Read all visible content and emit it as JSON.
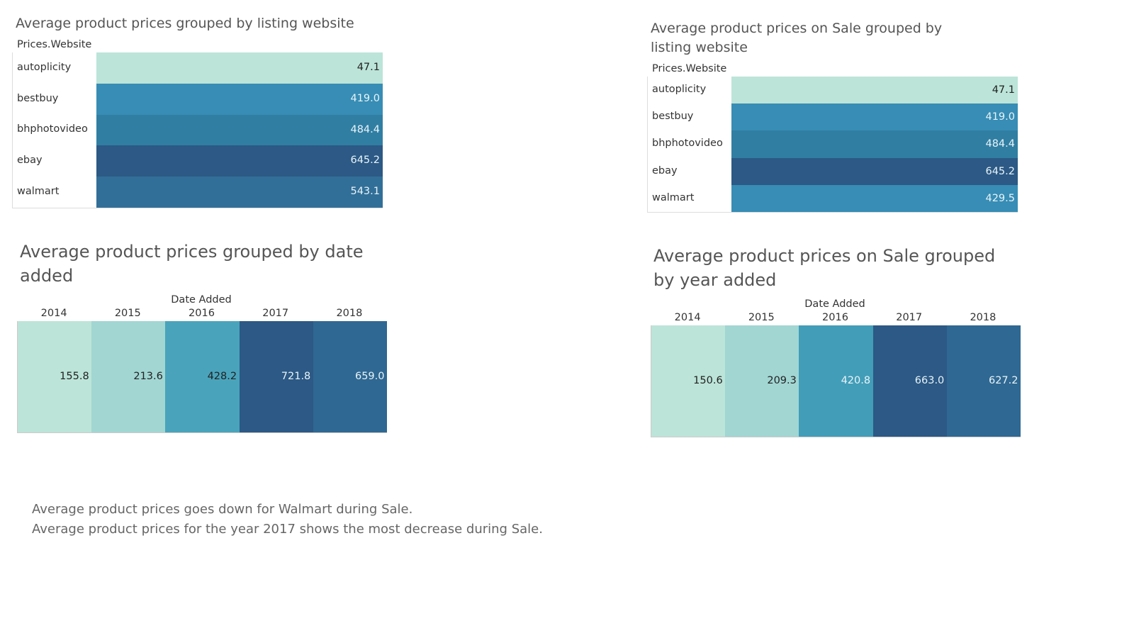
{
  "chart_data": [
    {
      "type": "heatmap",
      "title": "Average product prices grouped by listing website",
      "field_label": "Prices.Website",
      "categories": [
        "autoplicity",
        "bestbuy",
        "bhphotovideo",
        "ebay",
        "walmart"
      ],
      "values": [
        "47.1",
        "419.0",
        "484.4",
        "645.2",
        "543.1"
      ],
      "colors": [
        "#bce4d8",
        "#378db5",
        "#317ea3",
        "#2c5985",
        "#326f98"
      ],
      "text_colors": [
        "#222222",
        "#e8f4f8",
        "#e8f4f8",
        "#e8f4f8",
        "#e8f4f8"
      ]
    },
    {
      "type": "heatmap",
      "title": "Average product prices on Sale grouped by listing website",
      "field_label": "Prices.Website",
      "categories": [
        "autoplicity",
        "bestbuy",
        "bhphotovideo",
        "ebay",
        "walmart"
      ],
      "values": [
        "47.1",
        "419.0",
        "484.4",
        "645.2",
        "429.5"
      ],
      "colors": [
        "#bce4d8",
        "#378db5",
        "#317ea3",
        "#2c5985",
        "#378db5"
      ],
      "text_colors": [
        "#222222",
        "#e8f4f8",
        "#e8f4f8",
        "#e8f4f8",
        "#e8f4f8"
      ]
    },
    {
      "type": "heatmap",
      "title": "Average product prices grouped by date added",
      "field_label": "Date Added",
      "categories": [
        "2014",
        "2015",
        "2016",
        "2017",
        "2018"
      ],
      "values": [
        "155.8",
        "213.6",
        "428.2",
        "721.8",
        "659.0"
      ],
      "colors": [
        "#bce4d8",
        "#a1d6d3",
        "#49a4bb",
        "#2c5985",
        "#2f6892"
      ],
      "text_colors": [
        "#222222",
        "#222222",
        "#222222",
        "#e8f4f8",
        "#e8f4f8"
      ]
    },
    {
      "type": "heatmap",
      "title": "Average product prices on Sale grouped by year added",
      "field_label": "Date Added",
      "categories": [
        "2014",
        "2015",
        "2016",
        "2017",
        "2018"
      ],
      "values": [
        "150.6",
        "209.3",
        "420.8",
        "663.0",
        "627.2"
      ],
      "colors": [
        "#bce4d8",
        "#a1d6d3",
        "#429db8",
        "#2c5985",
        "#2f6892"
      ],
      "text_colors": [
        "#222222",
        "#222222",
        "#e8f4f8",
        "#e8f4f8",
        "#e8f4f8"
      ]
    }
  ],
  "notes": [
    "Average product prices goes down for Walmart during Sale.",
    "Average product prices for the year 2017 shows the most decrease during Sale."
  ]
}
